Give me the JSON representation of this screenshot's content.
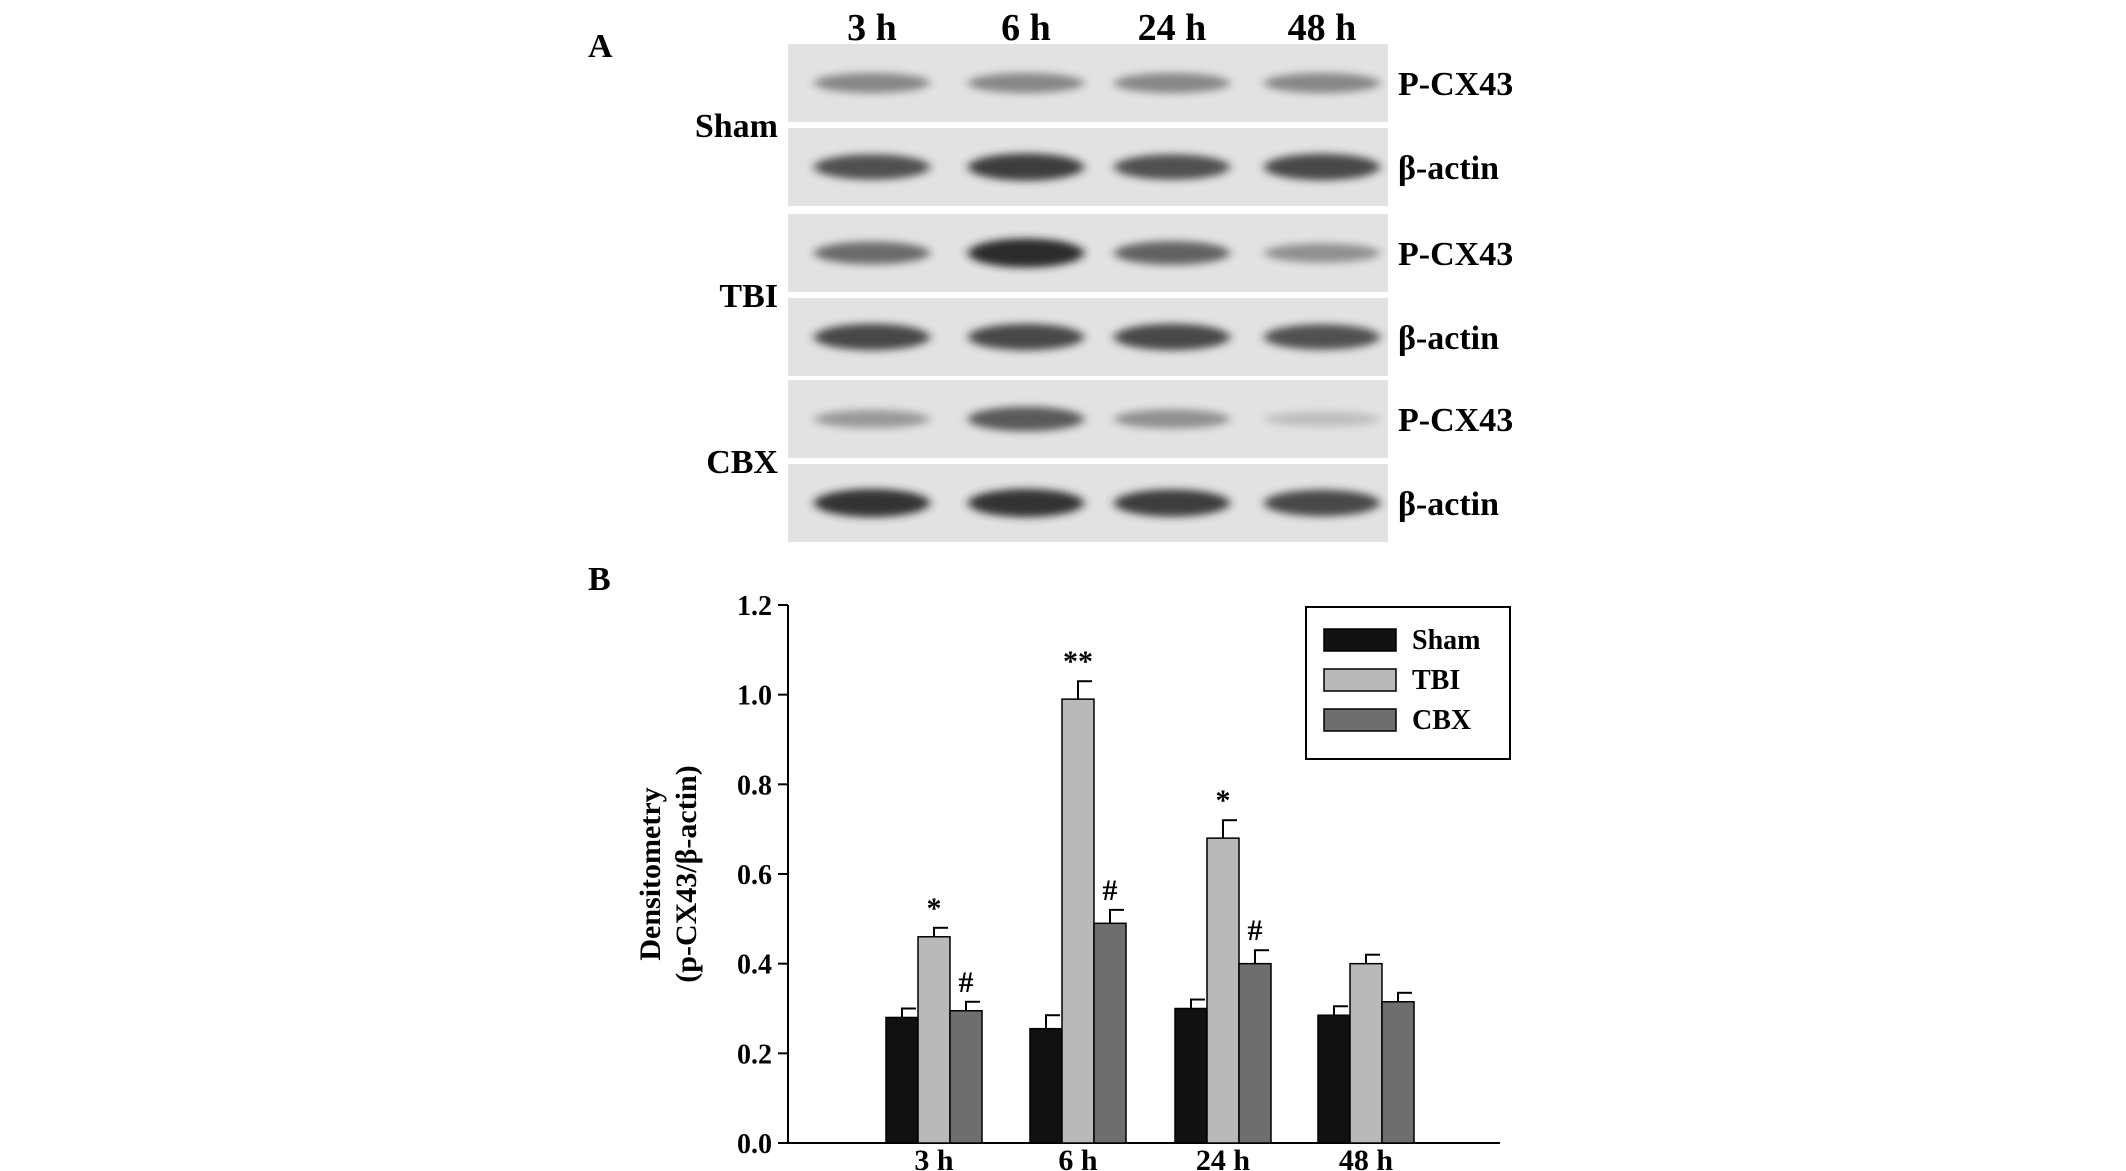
{
  "panel_a": {
    "label": "A",
    "timepoints": [
      "3 h",
      "6 h",
      "24 h",
      "48 h"
    ],
    "groups": [
      {
        "name": "Sham",
        "rows": [
          {
            "label": "P-CX43",
            "band_intensity": [
              0.45,
              0.45,
              0.45,
              0.45
            ]
          },
          {
            "label": "β-actin",
            "band_intensity": [
              0.75,
              0.85,
              0.75,
              0.8
            ]
          }
        ]
      },
      {
        "name": "TBI",
        "rows": [
          {
            "label": "P-CX43",
            "band_intensity": [
              0.6,
              0.95,
              0.65,
              0.4
            ]
          },
          {
            "label": "β-actin",
            "band_intensity": [
              0.8,
              0.8,
              0.8,
              0.75
            ]
          }
        ]
      },
      {
        "name": "CBX",
        "rows": [
          {
            "label": "P-CX43",
            "band_intensity": [
              0.35,
              0.7,
              0.4,
              0.15
            ]
          },
          {
            "label": "β-actin",
            "band_intensity": [
              0.9,
              0.9,
              0.85,
              0.8
            ]
          }
        ]
      }
    ]
  },
  "panel_b": {
    "label": "B"
  },
  "chart_data": {
    "type": "bar",
    "title": "",
    "xlabel": "",
    "ylabel": "Densitometry (p-CX43/β-actin)",
    "ylabel_lines": [
      "Densitometry",
      "(p-CX43/β-actin)"
    ],
    "ylim": [
      0,
      1.2
    ],
    "yticks": [
      "0.0",
      "0.2",
      "0.4",
      "0.6",
      "0.8",
      "1.0",
      "1.2"
    ],
    "categories": [
      "3 h",
      "6 h",
      "24 h",
      "48 h"
    ],
    "legend_position": "top-right",
    "grid": false,
    "series": [
      {
        "name": "Sham",
        "color": "#111111",
        "values": [
          0.28,
          0.255,
          0.3,
          0.285
        ],
        "errors": [
          0.02,
          0.03,
          0.02,
          0.02
        ],
        "annotations": [
          "",
          "",
          "",
          ""
        ]
      },
      {
        "name": "TBI",
        "color": "#b9b9b9",
        "values": [
          0.46,
          0.99,
          0.68,
          0.4
        ],
        "errors": [
          0.02,
          0.04,
          0.04,
          0.02
        ],
        "annotations": [
          "*",
          "**",
          "*",
          ""
        ]
      },
      {
        "name": "CBX",
        "color": "#6e6e6e",
        "values": [
          0.295,
          0.49,
          0.4,
          0.315
        ],
        "errors": [
          0.02,
          0.03,
          0.03,
          0.02
        ],
        "annotations": [
          "#",
          "#",
          "#",
          ""
        ]
      }
    ]
  }
}
